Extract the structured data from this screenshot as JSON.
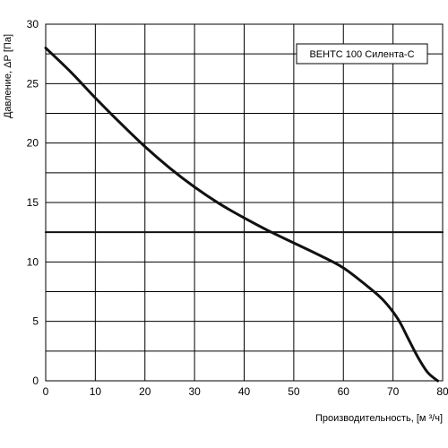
{
  "chart_data": {
    "type": "line",
    "xlabel": "Производительность, [м ³/ч]",
    "ylabel": "Давление, ΔР [Па]",
    "xlim": [
      0,
      80
    ],
    "ylim": [
      0,
      30
    ],
    "x_ticks": [
      "0",
      "10",
      "20",
      "30",
      "40",
      "50",
      "60",
      "70",
      "80"
    ],
    "y_ticks": [
      "0",
      "5",
      "10",
      "15",
      "20",
      "25",
      "30"
    ],
    "x_tick_values": [
      0,
      10,
      20,
      30,
      40,
      50,
      60,
      70,
      80
    ],
    "y_tick_values": [
      0,
      5,
      10,
      15,
      20,
      25,
      30
    ],
    "grid": true,
    "legend_position": "top-right",
    "series": [
      {
        "name": "ВЕНТС 100 Силента-С",
        "color": "#111111",
        "x": [
          0,
          5,
          10,
          15,
          20,
          25,
          30,
          35,
          40,
          45,
          50,
          55,
          60,
          65,
          68,
          71,
          73,
          75,
          77,
          79
        ],
        "y": [
          28,
          26.0,
          23.8,
          21.7,
          19.7,
          17.9,
          16.3,
          14.9,
          13.7,
          12.6,
          11.6,
          10.6,
          9.5,
          7.9,
          6.8,
          5.2,
          3.6,
          2.0,
          0.7,
          0
        ]
      },
      {
        "name": "",
        "color": "#111111",
        "x": [
          0,
          80
        ],
        "y": [
          12.5,
          12.5
        ]
      }
    ]
  }
}
